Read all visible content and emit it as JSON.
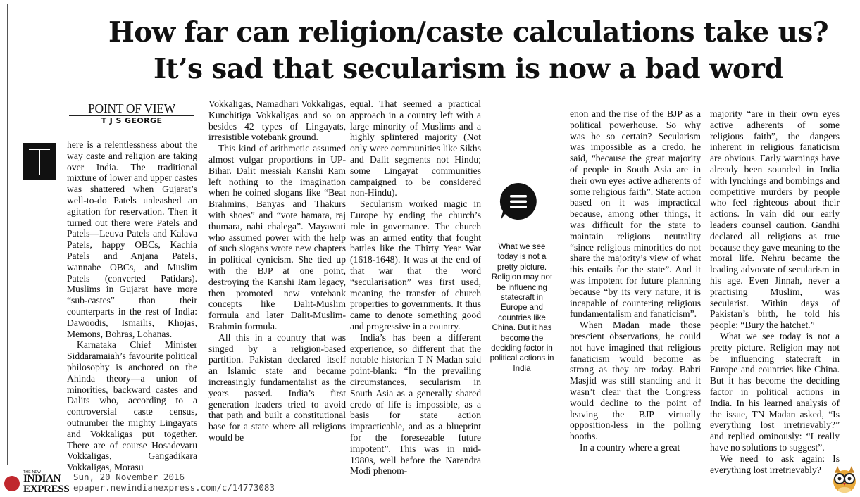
{
  "headline": {
    "line1": "How far can religion/caste calculations take us?",
    "line2": "It’s sad that secularism is now a bad word"
  },
  "byline": {
    "section": "POINT OF VIEW",
    "author": "T J S GEORGE"
  },
  "pull_quote": "What we see today is not a pretty picture. Religion may not be influencing statecraft in Europe and countries like China. But it has become the deciding factor in political actions in India",
  "icons": {
    "dropcap": "T",
    "pull_quote_icon": "chat-bubble-icon",
    "mascot": "owl-mascot-icon"
  },
  "article": {
    "col1": [
      "here is a relentlessness about the way caste and religion are taking over India. The traditional mixture of lower and upper castes was shattered when Gujarat’s well-to-do Patels unleashed an agitation for reservation. Then it turned out there were Patels and Patels—Leuva Patels and Kalava Patels, happy OBCs, Kachia Patels and Anjana Patels, wannabe OBCs, and Muslim Patels (converted Patidars). Muslims in Gujarat have more “sub-castes” than their counterparts in the rest of India: Dawoodis, Ismailis, Khojas, Memons, Bohras, Lohanas.",
      "Karnataka Chief Minister Siddaramaiah’s favourite political philosophy is anchored on the Ahinda theory—a union of minorities, backward castes and Dalits who, according to a controversial caste census, outnumber the mighty Lingayats and Vokkaligas put together. There are of course Hosadevaru Vokkaligas, Gangadikara Vokkaligas, Morasu"
    ],
    "col2": [
      "Vokkaligas, Namadhari Vokkaligas, Kunchitiga Vokkaligas and so on besides 42 types of Lingayats, irresistible votebank ground.",
      "This kind of arithmetic assumed almost vulgar proportions in UP-Bihar. Dalit messiah Kanshi Ram left nothing to the imagination when he coined slogans like “Beat Brahmins, Banyas and Thakurs with shoes” and “vote hamara, raj thumara, nahi chalega”. Mayawati who assumed power with the help of such slogans wrote new chapters in political cynicism. She tied up with the BJP at one point, destroying the Kanshi Ram legacy, then promoted new votebank concepts like Dalit-Muslim formula and later Dalit-Muslim-Brahmin formula.",
      "All this in a country that was singed by a religion-based partition. Pakistan declared itself an Islamic state and became increasingly fundamentalist as the years passed. India’s first generation leaders tried to avoid that path and built a constitutional base for a state where all religions would be"
    ],
    "col3": [
      "equal. That seemed a practical approach in a country left with a large minority of Muslims and a highly splintered majority (Not only were communities like Sikhs and Dalit segments not Hindu; some Lingayat communities campaigned to be considered non-Hindu).",
      "Secularism worked magic in Europe by ending the church’s role in governance. The church was an armed entity that fought battles like the Thirty Year War (1618-1648). It was at the end of that war that the word “secularisation” was first used, meaning the transfer of church properties to governments. It thus came to denote something good and progressive in a country.",
      "India’s has been a different experience, so different that the notable historian T N Madan said point-blank: “In the prevailing circumstances, secularism in South Asia as a generally shared credo of life is impossible, as a basis for state action impracticable, and as a blueprint for the foreseeable future impotent”. This was in mid-1980s, well before the Narendra Modi phenom-"
    ],
    "col4": [
      "enon and the rise of the BJP as a political powerhouse. So why was he so certain? Secularism was impossible as a credo, he said, “because the great majority of people in South Asia are in their own eyes active adherents of some religious faith”. State action based on it was impractical because, among other things, it was difficult for the state to maintain religious neutrality “since religious minorities do not share the majority’s view of what this entails for the state”. And it was impotent for future planning because “by its very nature, it is incapable of countering religious fundamentalism and fanaticism”.",
      "When Madan made those prescient observations, he could not have imagined that religious fanaticism would become as strong as they are today. Babri Masjid was still standing and it wasn’t clear that the Congress would decline to the point of leaving the BJP virtually opposition-less in the polling booths.",
      "In a country where a great"
    ],
    "col5": [
      "majority “are in their own eyes active adherents of some religious faith”, the dangers inherent in religious fanaticism are obvious. Early warnings have already been sounded in India with lynchings and bombings and competitive murders by people who feel righteous about their actions. In vain did our early leaders counsel caution. Gandhi declared all religions as true because they gave meaning to the moral life. Nehru became the leading advocate of secularism in his age. Even Jinnah, never a practising Muslim, was secularist. Within days of Pakistan’s birth, he told his people: “Bury the hatchet.”",
      "What we see today is not a pretty picture. Religion may not be influencing statecraft in Europe and countries like China. But it has become the deciding factor in political actions in India. In his learned analysis of the issue, TN Madan asked, “Is everything lost irretrievably?” and replied ominously: “I really have no solutions to suggest”.",
      "We need to ask again: Is everything lost irretrievably?"
    ]
  },
  "footer": {
    "logo_top": "THE NEW",
    "logo_line1": "INDIAN",
    "logo_line2": "EXPRESS",
    "date": "Sun, 20 November 2016",
    "url": "epaper.newindianexpress.com/c/14773083"
  },
  "colors": {
    "logo_red": "#c0272d",
    "ink": "#111111",
    "background": "#ffffff"
  }
}
